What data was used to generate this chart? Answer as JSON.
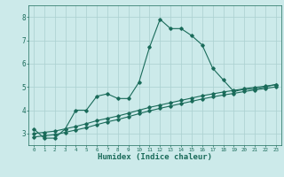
{
  "xlabel": "Humidex (Indice chaleur)",
  "bg_color": "#cceaea",
  "grid_color": "#aad0d0",
  "line_color": "#1a6b5a",
  "xlim": [
    -0.5,
    23.5
  ],
  "ylim": [
    2.5,
    8.5
  ],
  "xticks": [
    0,
    1,
    2,
    3,
    4,
    5,
    6,
    7,
    8,
    9,
    10,
    11,
    12,
    13,
    14,
    15,
    16,
    17,
    18,
    19,
    20,
    21,
    22,
    23
  ],
  "yticks": [
    3,
    4,
    5,
    6,
    7,
    8
  ],
  "series1_x": [
    0,
    1,
    2,
    3,
    4,
    5,
    6,
    7,
    8,
    9,
    10,
    11,
    12,
    13,
    14,
    15,
    16,
    17,
    18,
    19,
    20,
    21,
    22,
    23
  ],
  "series1_y": [
    3.2,
    2.8,
    2.8,
    3.2,
    4.0,
    4.0,
    4.6,
    4.7,
    4.5,
    4.5,
    5.2,
    6.7,
    7.9,
    7.5,
    7.5,
    7.2,
    6.8,
    5.8,
    5.3,
    4.8,
    4.9,
    4.9,
    5.0,
    5.1
  ],
  "series2_x": [
    0,
    1,
    2,
    3,
    4,
    5,
    6,
    7,
    8,
    9,
    10,
    11,
    12,
    13,
    14,
    15,
    16,
    17,
    18,
    19,
    20,
    21,
    22,
    23
  ],
  "series2_y": [
    2.85,
    2.9,
    2.95,
    3.05,
    3.15,
    3.25,
    3.38,
    3.5,
    3.6,
    3.72,
    3.85,
    3.97,
    4.08,
    4.18,
    4.28,
    4.38,
    4.48,
    4.57,
    4.65,
    4.72,
    4.8,
    4.87,
    4.93,
    5.0
  ],
  "series3_x": [
    0,
    1,
    2,
    3,
    4,
    5,
    6,
    7,
    8,
    9,
    10,
    11,
    12,
    13,
    14,
    15,
    16,
    17,
    18,
    19,
    20,
    21,
    22,
    23
  ],
  "series3_y": [
    3.0,
    3.05,
    3.1,
    3.2,
    3.3,
    3.42,
    3.55,
    3.65,
    3.75,
    3.87,
    4.0,
    4.12,
    4.22,
    4.32,
    4.42,
    4.52,
    4.62,
    4.7,
    4.78,
    4.85,
    4.92,
    4.98,
    5.03,
    5.1
  ]
}
